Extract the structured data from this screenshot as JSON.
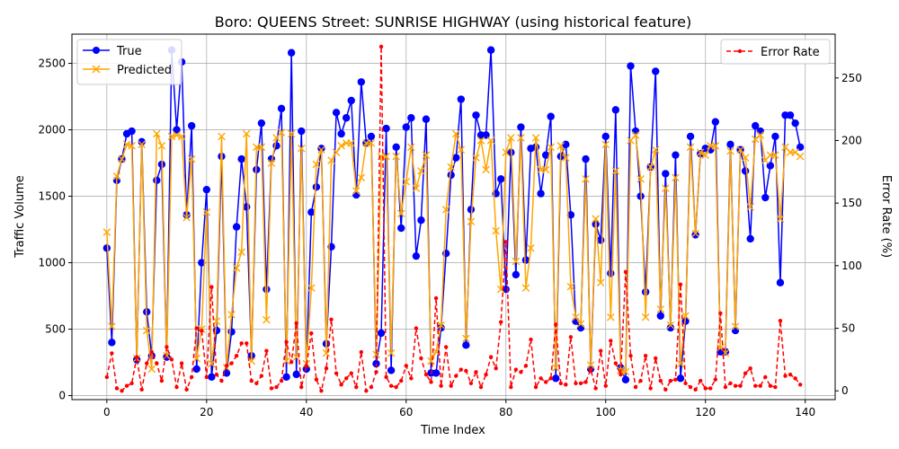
{
  "chart_data": {
    "type": "line",
    "title": "Boro: QUEENS Street: SUNRISE HIGHWAY (using historical feature)",
    "xlabel": "Time Index",
    "ylabel": "Traffic Volume",
    "y2label": "Error Rate (%)",
    "xlim": [
      -7,
      146
    ],
    "ylim": [
      -30,
      2720
    ],
    "y2lim": [
      -7,
      285
    ],
    "xticks": [
      0,
      20,
      40,
      60,
      80,
      100,
      120,
      140
    ],
    "yticks": [
      0,
      500,
      1000,
      1500,
      2000,
      2500
    ],
    "y2ticks": [
      0,
      50,
      100,
      150,
      200,
      250
    ],
    "grid": true,
    "legend_left": "upper-left",
    "legend_right": "upper-right",
    "series": [
      {
        "name": "True",
        "color": "#0000ff",
        "marker": "circle",
        "axis": "left",
        "values": [
          1110,
          400,
          1620,
          1780,
          1970,
          1990,
          270,
          1910,
          630,
          300,
          1620,
          1740,
          290,
          2600,
          2000,
          2510,
          1360,
          2030,
          200,
          1000,
          1550,
          140,
          490,
          1800,
          170,
          480,
          1270,
          1780,
          1420,
          300,
          1700,
          2050,
          800,
          1780,
          1880,
          2160,
          140,
          2580,
          160,
          1990,
          200,
          1380,
          1570,
          1860,
          390,
          1120,
          2130,
          1970,
          2090,
          2220,
          1510,
          2360,
          1900,
          1950,
          240,
          470,
          2010,
          190,
          1870,
          1260,
          2020,
          2090,
          1050,
          1320,
          2080,
          170,
          170,
          510,
          1070,
          1660,
          1790,
          2230,
          380,
          1400,
          2110,
          1960,
          1960,
          2600,
          1520,
          1630,
          800,
          1830,
          910,
          2020,
          1020,
          1860,
          1870,
          1520,
          1810,
          2100,
          130,
          1800,
          1890,
          1360,
          560,
          510,
          1780,
          200,
          1290,
          1170,
          1950,
          920,
          2150,
          210,
          120,
          2480,
          1990,
          1500,
          780,
          1720,
          2440,
          600,
          1670,
          510,
          1810,
          130,
          560,
          1950,
          1210,
          1820,
          1860,
          1850,
          2060,
          330,
          330,
          1890,
          490,
          1850,
          1690,
          1180,
          2030,
          1990,
          1490,
          1730,
          1950,
          850,
          2110,
          2110,
          2050,
          1870
        ]
      },
      {
        "name": "Predicted",
        "color": "#ffa500",
        "marker": "x",
        "axis": "left",
        "values": [
          1230,
          520,
          1650,
          1780,
          1890,
          1880,
          280,
          1890,
          490,
          200,
          1970,
          1880,
          300,
          1950,
          1960,
          1950,
          1340,
          1780,
          280,
          500,
          1380,
          240,
          560,
          1950,
          210,
          610,
          960,
          1080,
          1970,
          260,
          1870,
          1870,
          570,
          1750,
          1940,
          1980,
          260,
          1970,
          290,
          1860,
          240,
          810,
          1740,
          1850,
          320,
          1770,
          1830,
          1880,
          1900,
          1900,
          1540,
          1640,
          1900,
          1900,
          310,
          1800,
          1800,
          320,
          1800,
          1370,
          1610,
          1870,
          1560,
          1690,
          1810,
          260,
          330,
          530,
          1400,
          1720,
          1970,
          1850,
          430,
          1310,
          1790,
          1920,
          1700,
          1920,
          1240,
          800,
          1830,
          1940,
          1010,
          1940,
          810,
          1110,
          1940,
          1700,
          1700,
          1870,
          210,
          1880,
          1790,
          820,
          590,
          540,
          1630,
          230,
          1330,
          850,
          1890,
          590,
          1690,
          190,
          180,
          1920,
          1960,
          1630,
          590,
          1720,
          1850,
          650,
          1560,
          530,
          1640,
          240,
          600,
          1870,
          1220,
          1830,
          1810,
          1880,
          1880,
          360,
          320,
          1840,
          520,
          1850,
          1790,
          1420,
          1930,
          1960,
          1770,
          1810,
          1810,
          1330,
          1870,
          1830,
          1830,
          1800
        ]
      },
      {
        "name": "Error Rate",
        "color": "#ff0000",
        "marker": "dot",
        "linestyle": "dashed",
        "axis": "right",
        "values": [
          11,
          30,
          2,
          0,
          4,
          6,
          27,
          1,
          22,
          31,
          22,
          8,
          35,
          25,
          3,
          22,
          1,
          11,
          50,
          48,
          11,
          83,
          13,
          8,
          20,
          22,
          28,
          38,
          38,
          8,
          6,
          12,
          32,
          2,
          3,
          8,
          39,
          23,
          54,
          3,
          20,
          46,
          9,
          0,
          18,
          57,
          14,
          5,
          10,
          14,
          3,
          31,
          0,
          3,
          15,
          275,
          11,
          4,
          3,
          8,
          20,
          10,
          50,
          26,
          13,
          7,
          74,
          4,
          35,
          4,
          12,
          17,
          16,
          6,
          15,
          3,
          13,
          27,
          18,
          55,
          119,
          3,
          17,
          15,
          20,
          41,
          3,
          10,
          7,
          10,
          53,
          6,
          5,
          43,
          6,
          6,
          7,
          17,
          2,
          32,
          4,
          40,
          22,
          13,
          95,
          28,
          3,
          8,
          28,
          2,
          26,
          8,
          1,
          8,
          9,
          85,
          6,
          3,
          1,
          8,
          2,
          2,
          9,
          62,
          3,
          6,
          4,
          4,
          14,
          18,
          4,
          4,
          11,
          4,
          3,
          56,
          12,
          13,
          10,
          5
        ]
      }
    ]
  }
}
